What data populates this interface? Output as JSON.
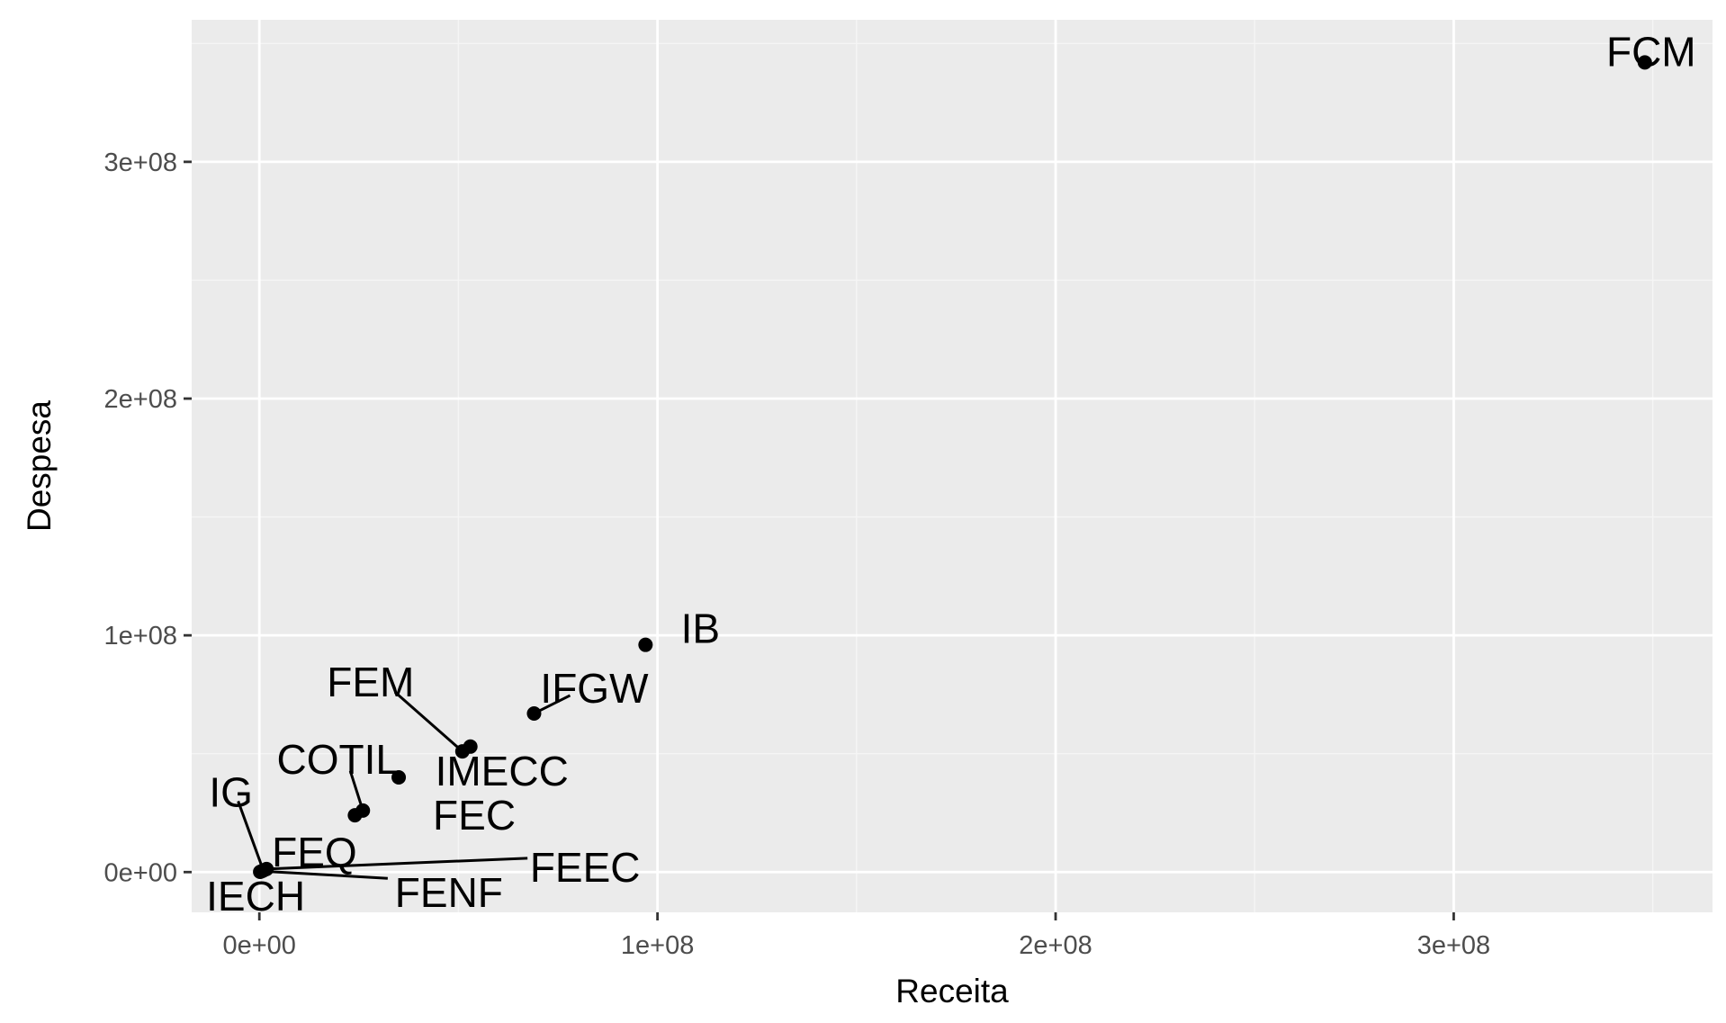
{
  "chart_data": {
    "type": "scatter",
    "xlabel": "Receita",
    "ylabel": "Despesa",
    "xlim": [
      -17000000,
      365000000
    ],
    "ylim": [
      -17000000,
      360000000
    ],
    "x_ticks": [
      0,
      100000000,
      200000000,
      300000000
    ],
    "x_tick_labels": [
      "0e+00",
      "1e+08",
      "2e+08",
      "3e+08"
    ],
    "y_ticks": [
      0,
      100000000,
      200000000,
      300000000
    ],
    "y_tick_labels": [
      "0e+00",
      "1e+08",
      "2e+08",
      "3e+08"
    ],
    "grid": true,
    "legend": "none",
    "colors": {
      "panel_background": "#ebebeb",
      "grid_major": "#ffffff",
      "grid_minor": "#f5f5f5",
      "point": "#000000",
      "tick_text": "#4d4d4d",
      "title_text": "#000000"
    },
    "points": [
      {
        "label": "FCM",
        "x": 348000000,
        "y": 342000000
      },
      {
        "label": "IB",
        "x": 97000000,
        "y": 96000000
      },
      {
        "label": "IFGW",
        "x": 69000000,
        "y": 67000000
      },
      {
        "label": "IMECC",
        "x": 53000000,
        "y": 53000000
      },
      {
        "label": "FEM",
        "x": 51000000,
        "y": 51000000
      },
      {
        "label": "FEC",
        "x": 35000000,
        "y": 40000000
      },
      {
        "label": "COTIL",
        "x": 26000000,
        "y": 26000000
      },
      {
        "label": "FEQ",
        "x": 24000000,
        "y": 24000000
      },
      {
        "label": "IG",
        "x": 1000000,
        "y": 700000
      },
      {
        "label": "FEEC",
        "x": 1800000,
        "y": 1300000
      },
      {
        "label": "FENF",
        "x": 600000,
        "y": 400000
      },
      {
        "label": "IECH",
        "x": 200000,
        "y": 100000
      }
    ]
  }
}
